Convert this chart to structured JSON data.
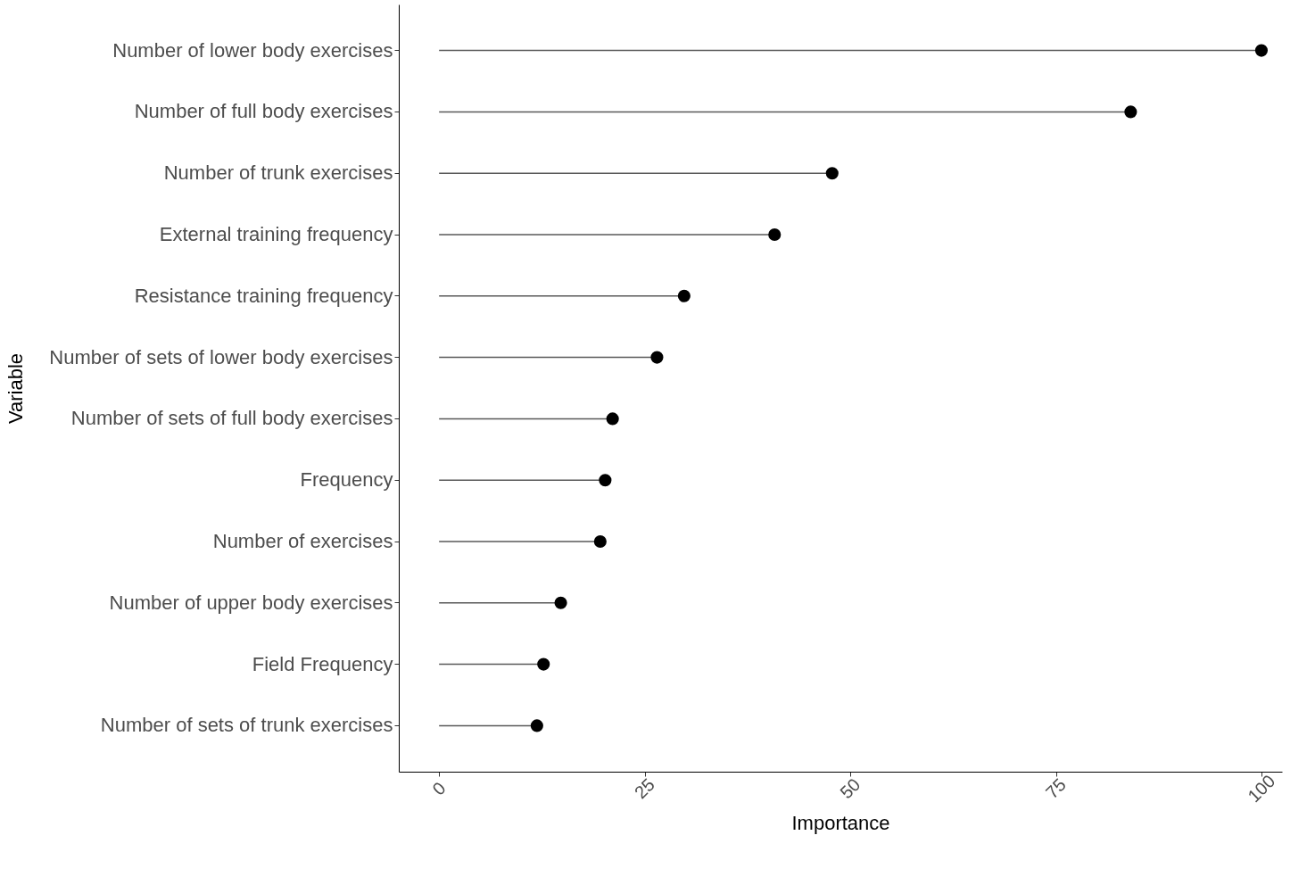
{
  "chart_data": {
    "type": "lollipop",
    "orientation": "horizontal",
    "xlabel": "Importance",
    "ylabel": "Variable",
    "categories": [
      "Number of lower body exercises",
      "Number of full body exercises",
      "Number of trunk exercises",
      "External training frequency",
      "Resistance training frequency",
      "Number of sets of lower body exercises",
      "Number of sets of full body exercises",
      "Frequency",
      "Number of exercises",
      "Number of upper body exercises",
      "Field Frequency",
      "Number of sets of trunk exercises"
    ],
    "values": [
      100,
      84.1,
      47.8,
      40.8,
      29.8,
      26.5,
      21.1,
      20.2,
      19.6,
      14.8,
      12.7,
      11.9
    ],
    "color": "#000000",
    "xlim": [
      -4.9,
      102.5
    ],
    "xticks": [
      0,
      25,
      50,
      75,
      100
    ],
    "grid": false,
    "marker": "circle"
  }
}
